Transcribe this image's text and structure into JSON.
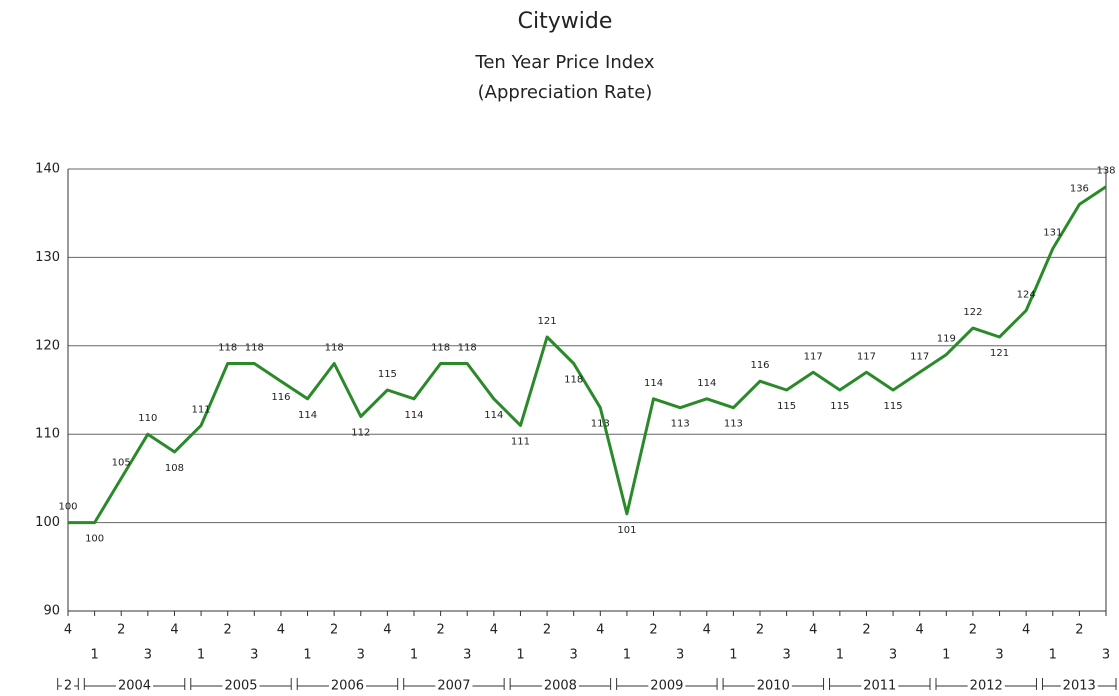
{
  "chart_data": {
    "type": "line",
    "title": "Citywide",
    "subtitle": [
      "Ten Year Price Index",
      "(Appreciation Rate)"
    ],
    "categories": [
      "4",
      "1",
      "2",
      "3",
      "4",
      "1",
      "2",
      "3",
      "4",
      "1",
      "2",
      "3",
      "4",
      "1",
      "2",
      "3",
      "4",
      "1",
      "2",
      "3",
      "4",
      "1",
      "2",
      "3",
      "4",
      "1",
      "2",
      "3",
      "4",
      "1",
      "2",
      "3",
      "4",
      "1",
      "2",
      "3",
      "4",
      "1",
      "2",
      "3"
    ],
    "years": [
      "2",
      "2004",
      "2005",
      "2006",
      "2007",
      "2008",
      "2009",
      "2010",
      "2011",
      "2012",
      "2013"
    ],
    "series": [
      {
        "name": "Price Index",
        "color": "#2a8a2a",
        "values": [
          100,
          100,
          105,
          110,
          108,
          111,
          118,
          118,
          116,
          114,
          118,
          112,
          115,
          114,
          118,
          118,
          114,
          111,
          121,
          118,
          113,
          101,
          114,
          113,
          114,
          113,
          116,
          115,
          117,
          115,
          117,
          115,
          117,
          119,
          122,
          121,
          124,
          131,
          136,
          138
        ]
      }
    ],
    "ylim": [
      90,
      140
    ],
    "yticks": [
      90,
      100,
      110,
      120,
      130,
      140
    ],
    "grid": true
  }
}
